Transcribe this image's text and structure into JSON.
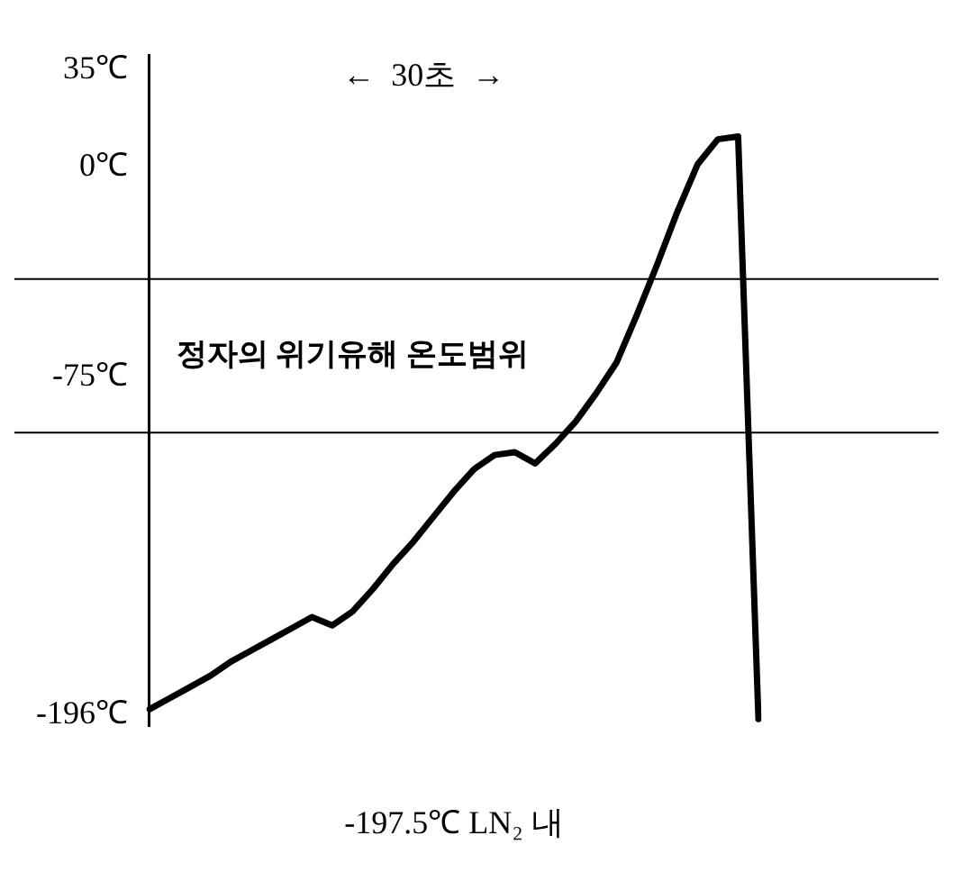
{
  "chart_data": {
    "type": "line",
    "categories": [
      null,
      null,
      null,
      null,
      null,
      null,
      null,
      null,
      null,
      null,
      null,
      null,
      null,
      null,
      null,
      null,
      null,
      null,
      null,
      null,
      null,
      null,
      null,
      null,
      null,
      null,
      null,
      null,
      null,
      null,
      null
    ],
    "series": [
      {
        "color": "#000000",
        "values": [
          -194,
          -190,
          -186,
          -182,
          -177,
          -173,
          -169,
          -165,
          -161,
          -164,
          -159,
          -151,
          -142,
          -134,
          -125,
          -116,
          -108,
          -103,
          -102,
          -106,
          -99,
          -91,
          -81,
          -70,
          -53,
          -35,
          -16,
          1,
          10,
          11,
          -197.5
        ]
      }
    ],
    "ylim": [
      -200,
      40
    ],
    "yticks": [
      {
        "value": 35,
        "label": "35℃"
      },
      {
        "value": 0,
        "label": "0℃"
      },
      {
        "value": -75,
        "label": "-75℃"
      },
      {
        "value": -196,
        "label": "-196℃"
      }
    ],
    "ref_lines": [
      {
        "axis": "y",
        "value": -40,
        "color": "#000000"
      },
      {
        "axis": "y",
        "value": -95,
        "color": "#000000"
      }
    ],
    "annotations": [
      "←  30초  →",
      "-197.5℃ LN₂ 내",
      "정자의 위기유해 온도범위"
    ],
    "grid": false,
    "legend": false,
    "marker": "none",
    "line_style": "solid",
    "tick_labels": "y"
  }
}
